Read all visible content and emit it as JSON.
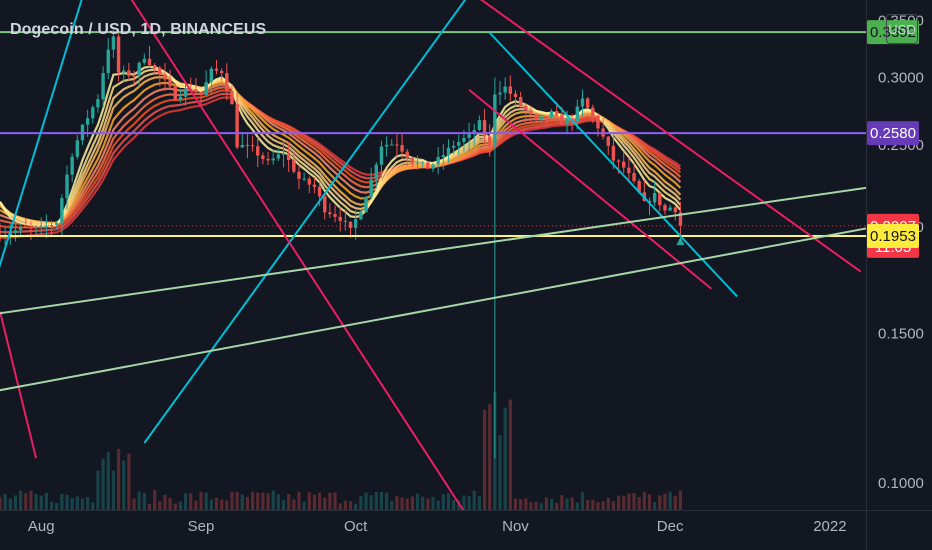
{
  "header": {
    "title": "Dogecoin / USD, 1D, BINANCEUS",
    "currency_button": "USD"
  },
  "chart_data": {
    "type": "candlestick",
    "symbol": "Dogecoin / USD",
    "interval": "1D",
    "exchange": "BINANCEUS",
    "y_scale": "log",
    "ylim": [
      0.093,
      0.37
    ],
    "y_ticks": [
      {
        "value": 0.35,
        "label": "0.3500"
      },
      {
        "value": 0.3,
        "label": "0.3000"
      },
      {
        "value": 0.25,
        "label": "0.2500"
      },
      {
        "value": 0.2,
        "label": "0.2000"
      },
      {
        "value": 0.15,
        "label": "0.1500"
      },
      {
        "value": 0.1,
        "label": "0.1000"
      }
    ],
    "x_start": "2021-07-24",
    "x_end": "2022-01-08",
    "x_ticks": [
      {
        "date": "2021-08-01",
        "label": "Aug"
      },
      {
        "date": "2021-09-01",
        "label": "Sep"
      },
      {
        "date": "2021-10-01",
        "label": "Oct"
      },
      {
        "date": "2021-11-01",
        "label": "Nov"
      },
      {
        "date": "2021-12-01",
        "label": "Dec"
      },
      {
        "date": "2022-01-01",
        "label": "2022"
      }
    ],
    "price_tags": [
      {
        "value": 0.3392,
        "label": "0.3392",
        "bg": "#4caf50",
        "fg": "#131722"
      },
      {
        "value": 0.258,
        "label": "0.2580",
        "bg": "#673ab7",
        "fg": "#ffffff"
      },
      {
        "value": 0.2007,
        "label": "0.2007",
        "bg": "#f23645",
        "fg": "#ffffff",
        "countdown": "11:05"
      },
      {
        "value": 0.1953,
        "label": "0.1953",
        "bg": "#ffeb3b",
        "fg": "#131722"
      }
    ],
    "horizontal_levels": [
      {
        "value": 0.3392,
        "color": "#81c784"
      },
      {
        "value": 0.258,
        "color": "#8e5cf7"
      },
      {
        "value": 0.1953,
        "color": "#fff176"
      }
    ],
    "last_price_line": {
      "value": 0.2007,
      "color": "#f23645"
    },
    "trend_lines": [
      {
        "from": [
          "2021-08-21",
          0.1115
        ],
        "to": [
          "2021-10-27",
          0.4058
        ],
        "color": "#00bcd4"
      },
      {
        "from": [
          "2021-07-23",
          0.1727
        ],
        "to": [
          "2021-08-11",
          0.4084
        ],
        "color": "#00bcd4"
      },
      {
        "from": [
          "2021-10-27",
          0.3386
        ],
        "to": [
          "2021-12-14",
          0.1658
        ],
        "color": "#00bcd4"
      },
      {
        "from": [
          "2021-08-16",
          0.3911
        ],
        "to": [
          "2021-10-23",
          0.0907
        ],
        "color": "#e91e63"
      },
      {
        "from": [
          "2021-07-24",
          0.1592
        ],
        "to": [
          "2021-07-31",
          0.107
        ],
        "color": "#e91e63"
      },
      {
        "from": [
          "2021-10-15",
          0.4107
        ],
        "to": [
          "2022-01-07",
          0.1773
        ],
        "color": "#e91e63"
      },
      {
        "from": [
          "2021-10-23",
          0.2902
        ],
        "to": [
          "2021-12-09",
          0.1693
        ],
        "color": "#e91e63"
      },
      {
        "from": [
          "2021-07-23",
          0.1581
        ],
        "to": [
          "2022-01-08",
          0.2225
        ],
        "color": "#a5d6a7"
      },
      {
        "from": [
          "2021-07-23",
          0.1283
        ],
        "to": [
          "2022-01-08",
          0.1993
        ],
        "color": "#a5d6a7"
      }
    ],
    "price_path": [
      [
        "2021-07-24",
        0.196
      ],
      [
        "2021-07-28",
        0.199
      ],
      [
        "2021-08-01",
        0.199
      ],
      [
        "2021-08-04",
        0.203
      ],
      [
        "2021-08-07",
        0.244
      ],
      [
        "2021-08-09",
        0.262
      ],
      [
        "2021-08-12",
        0.284
      ],
      [
        "2021-08-14",
        0.325
      ],
      [
        "2021-08-15",
        0.333
      ],
      [
        "2021-08-16",
        0.304
      ],
      [
        "2021-08-19",
        0.302
      ],
      [
        "2021-08-21",
        0.318
      ],
      [
        "2021-08-24",
        0.302
      ],
      [
        "2021-08-27",
        0.285
      ],
      [
        "2021-08-30",
        0.292
      ],
      [
        "2021-09-01",
        0.286
      ],
      [
        "2021-09-03",
        0.305
      ],
      [
        "2021-09-05",
        0.305
      ],
      [
        "2021-09-07",
        0.278
      ],
      [
        "2021-09-08",
        0.25
      ],
      [
        "2021-09-11",
        0.247
      ],
      [
        "2021-09-14",
        0.238
      ],
      [
        "2021-09-17",
        0.245
      ],
      [
        "2021-09-20",
        0.228
      ],
      [
        "2021-09-23",
        0.223
      ],
      [
        "2021-09-25",
        0.21
      ],
      [
        "2021-09-28",
        0.205
      ],
      [
        "2021-09-30",
        0.198
      ],
      [
        "2021-10-02",
        0.21
      ],
      [
        "2021-10-04",
        0.227
      ],
      [
        "2021-10-06",
        0.25
      ],
      [
        "2021-10-09",
        0.251
      ],
      [
        "2021-10-12",
        0.239
      ],
      [
        "2021-10-15",
        0.235
      ],
      [
        "2021-10-17",
        0.24
      ],
      [
        "2021-10-20",
        0.25
      ],
      [
        "2021-10-23",
        0.256
      ],
      [
        "2021-10-25",
        0.265
      ],
      [
        "2021-10-27",
        0.248
      ],
      [
        "2021-10-28",
        0.288
      ],
      [
        "2021-10-30",
        0.292
      ],
      [
        "2021-11-02",
        0.278
      ],
      [
        "2021-11-05",
        0.266
      ],
      [
        "2021-11-08",
        0.272
      ],
      [
        "2021-11-10",
        0.266
      ],
      [
        "2021-11-12",
        0.268
      ],
      [
        "2021-11-14",
        0.282
      ],
      [
        "2021-11-16",
        0.27
      ],
      [
        "2021-11-18",
        0.255
      ],
      [
        "2021-11-20",
        0.24
      ],
      [
        "2021-11-22",
        0.235
      ],
      [
        "2021-11-24",
        0.225
      ],
      [
        "2021-11-26",
        0.213
      ],
      [
        "2021-11-28",
        0.218
      ],
      [
        "2021-11-30",
        0.209
      ],
      [
        "2021-12-01",
        0.211
      ],
      [
        "2021-12-02",
        0.21
      ],
      [
        "2021-12-03",
        0.2007
      ]
    ],
    "volume_note": "volume histogram along the bottom of the chart"
  }
}
